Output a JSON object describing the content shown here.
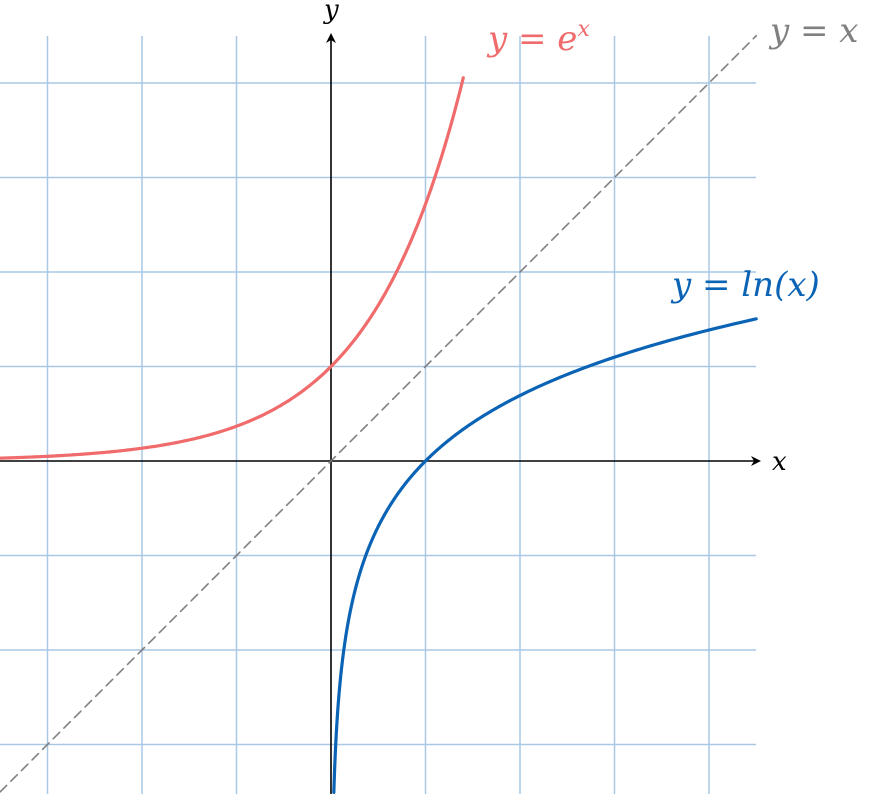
{
  "chart_data": {
    "type": "line",
    "xlabel": "x",
    "ylabel": "y",
    "xlim": [
      -3.5,
      4.5
    ],
    "ylim": [
      -3.5,
      4.5
    ],
    "grid": true,
    "grid_step": 1,
    "series": [
      {
        "name": "y = e^x",
        "color": "#f06b6b",
        "style": "solid",
        "x": [
          -3.5,
          -3,
          -2.5,
          -2,
          -1.5,
          -1,
          -0.75,
          -0.5,
          -0.25,
          0,
          0.25,
          0.5,
          0.75,
          1,
          1.25,
          1.4
        ],
        "y": [
          0.03,
          0.05,
          0.082,
          0.135,
          0.223,
          0.368,
          0.472,
          0.607,
          0.779,
          1,
          1.284,
          1.649,
          2.117,
          2.718,
          3.49,
          4.055
        ]
      },
      {
        "name": "y = ln(x)",
        "color": "#0a63b4",
        "style": "solid",
        "x": [
          0.03,
          0.05,
          0.1,
          0.2,
          0.3,
          0.5,
          0.75,
          1,
          1.5,
          2,
          2.5,
          3,
          3.5,
          4,
          4.5
        ],
        "y": [
          -3.507,
          -2.996,
          -2.303,
          -1.609,
          -1.204,
          -0.693,
          -0.288,
          0,
          0.405,
          0.693,
          0.916,
          1.099,
          1.253,
          1.386,
          1.504
        ]
      },
      {
        "name": "y = x",
        "color": "#808080",
        "style": "dashed",
        "x": [
          -3.5,
          4.5
        ],
        "y": [
          -3.5,
          4.5
        ]
      }
    ],
    "annotations": {
      "exp_label": "y = e^x",
      "exp_base": "y = e",
      "exp_sup": "x",
      "ln_label": "y = ln(x)",
      "identity_label": "y = x"
    }
  }
}
